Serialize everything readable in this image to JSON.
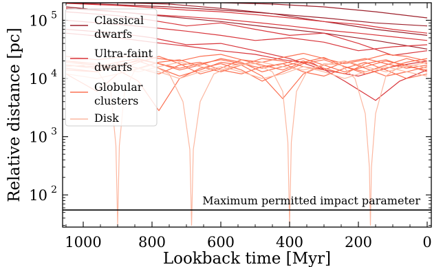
{
  "chart_data": {
    "type": "line",
    "xlabel": "Lookback time [Myr]",
    "ylabel": "Relative distance [pc]",
    "x_reversed": true,
    "y_scale": "log",
    "xlim": [
      1060,
      -12
    ],
    "ylim": [
      28,
      200000
    ],
    "x_ticks": [
      {
        "value": 1000,
        "label": "1000"
      },
      {
        "value": 800,
        "label": "800"
      },
      {
        "value": 600,
        "label": "600"
      },
      {
        "value": 400,
        "label": "400"
      },
      {
        "value": 200,
        "label": "200"
      },
      {
        "value": 0,
        "label": "0"
      }
    ],
    "y_ticks": [
      {
        "value": 100,
        "base": "10",
        "exp": "2"
      },
      {
        "value": 1000,
        "base": "10",
        "exp": "3"
      },
      {
        "value": 10000,
        "base": "10",
        "exp": "4"
      },
      {
        "value": 100000,
        "base": "10",
        "exp": "5"
      }
    ],
    "legend": {
      "position": "top-left",
      "entries": [
        {
          "label_lines": [
            "Classical",
            "dwarfs"
          ],
          "color": "#9c1f2a"
        },
        {
          "label_lines": [
            "Ultra-faint",
            "dwarfs"
          ],
          "color": "#d8343a"
        },
        {
          "label_lines": [
            "Globular",
            "clusters"
          ],
          "color": "#fb7052"
        },
        {
          "label_lines": [
            "Disk"
          ],
          "color": "#fcb7a0"
        }
      ]
    },
    "reference_line": {
      "y": 55,
      "label": "Maximum permitted impact parameter",
      "color": "#000000"
    },
    "series": [
      {
        "group": "Classical dwarfs",
        "color": "#9c1f2a",
        "curves": [
          {
            "times": [
              0,
              150,
              300,
              450,
              600,
              750,
              900,
              1050
            ],
            "values": [
              55000,
              70000,
              95000,
              130000,
              160000,
              190000,
              200000,
              200000
            ]
          },
          {
            "times": [
              0,
              150,
              300,
              450,
              600,
              750,
              900,
              1050
            ],
            "values": [
              32000,
              45000,
              60000,
              75000,
              95000,
              115000,
              140000,
              170000
            ]
          },
          {
            "times": [
              0,
              150,
              300,
              450,
              600,
              750,
              900,
              1050
            ],
            "values": [
              110000,
              140000,
              170000,
              190000,
              200000,
              200000,
              200000,
              200000
            ]
          },
          {
            "times": [
              0,
              150,
              300,
              450,
              600,
              750,
              900,
              1050
            ],
            "values": [
              80000,
              90000,
              110000,
              130000,
              150000,
              170000,
              185000,
              200000
            ]
          }
        ]
      },
      {
        "group": "Ultra-faint dwarfs",
        "color": "#d8343a",
        "curves": [
          {
            "times": [
              0,
              100,
              200,
              300,
              400,
              500,
              600,
              700,
              800,
              900,
              1050
            ],
            "values": [
              30000,
              25000,
              40000,
              60000,
              55000,
              70000,
              90000,
              80000,
              100000,
              120000,
              140000
            ]
          },
          {
            "times": [
              0,
              100,
              200,
              300,
              400,
              500,
              600,
              700,
              800,
              900,
              1050
            ],
            "values": [
              20000,
              16000,
              11000,
              14000,
              22000,
              30000,
              40000,
              38000,
              50000,
              60000,
              70000
            ]
          },
          {
            "times": [
              0,
              100,
              200,
              300,
              400,
              500,
              600,
              700,
              800,
              900,
              1050
            ],
            "values": [
              60000,
              70000,
              85000,
              95000,
              110000,
              125000,
              140000,
              150000,
              165000,
              180000,
              195000
            ]
          },
          {
            "times": [
              0,
              80,
              150,
              240,
              330,
              420,
              500,
              600,
              700,
              800,
              900,
              1050
            ],
            "values": [
              14000,
              9000,
              4200,
              9000,
              18000,
              21000,
              26000,
              30000,
              36000,
              42000,
              50000,
              60000
            ]
          },
          {
            "times": [
              0,
              100,
              200,
              300,
              400,
              500,
              600,
              700,
              800,
              900,
              1050
            ],
            "values": [
              38000,
              35000,
              30000,
              42000,
              50000,
              45000,
              55000,
              65000,
              75000,
              85000,
              100000
            ]
          },
          {
            "times": [
              0,
              100,
              200,
              300,
              400,
              500,
              600,
              700,
              800,
              900,
              1050
            ],
            "values": [
              45000,
              52000,
              60000,
              68000,
              80000,
              92000,
              105000,
              115000,
              125000,
              140000,
              160000
            ]
          }
        ]
      },
      {
        "group": "Globular clusters",
        "color": "#fb7052",
        "curves": [
          {
            "times": [
              0,
              60,
              120,
              180,
              240,
              300,
              360,
              420,
              480,
              540,
              600,
              660,
              720,
              780,
              840,
              900,
              960,
              1050
            ],
            "values": [
              14000,
              16000,
              21000,
              18000,
              12000,
              15000,
              20000,
              16000,
              13000,
              19000,
              22000,
              17000,
              14000,
              18000,
              21000,
              16000,
              15000,
              17000
            ]
          },
          {
            "times": [
              0,
              60,
              120,
              180,
              240,
              300,
              360,
              420,
              480,
              540,
              600,
              660,
              720,
              780,
              840,
              900,
              960,
              1050
            ],
            "values": [
              18000,
              22000,
              17000,
              13000,
              16000,
              23000,
              19000,
              14000,
              17000,
              21000,
              15000,
              12000,
              18000,
              24000,
              19000,
              14000,
              18000,
              20000
            ]
          },
          {
            "times": [
              0,
              60,
              120,
              180,
              240,
              300,
              360,
              420,
              480,
              540,
              600,
              660,
              720,
              780,
              840,
              900,
              960,
              1050
            ],
            "values": [
              12000,
              10000,
              14000,
              19000,
              15000,
              11000,
              13000,
              18000,
              16000,
              12000,
              14000,
              19000,
              17000,
              12000,
              15000,
              18000,
              13000,
              14000
            ]
          },
          {
            "times": [
              0,
              60,
              120,
              180,
              240,
              300,
              360,
              420,
              480,
              540,
              600,
              660,
              720,
              780,
              840,
              900,
              960,
              1050
            ],
            "values": [
              20000,
              24000,
              26000,
              21000,
              18000,
              22000,
              27000,
              23000,
              19000,
              21000,
              26000,
              24000,
              20000,
              22000,
              25000,
              23000,
              21000,
              24000
            ]
          },
          {
            "times": [
              0,
              60,
              120,
              180,
              240,
              300,
              360,
              420,
              480,
              540,
              600,
              660,
              720,
              780,
              840,
              900,
              960,
              1050
            ],
            "values": [
              16000,
              13000,
              11000,
              15000,
              20000,
              17000,
              12000,
              4500,
              11000,
              17000,
              19000,
              14000,
              11000,
              15000,
              20000,
              17000,
              13000,
              15000
            ]
          },
          {
            "times": [
              0,
              60,
              120,
              180,
              240,
              300,
              360,
              420,
              480,
              540,
              600,
              660,
              720,
              780,
              840,
              900,
              960,
              1050
            ],
            "values": [
              22000,
              19000,
              15000,
              12000,
              16000,
              21000,
              18000,
              13000,
              9000,
              14000,
              18000,
              15000,
              10000,
              2800,
              9000,
              14000,
              17000,
              19000
            ]
          },
          {
            "times": [
              0,
              60,
              120,
              180,
              240,
              300,
              360,
              420,
              480,
              540,
              600,
              660,
              720,
              780,
              840,
              900,
              960,
              1050
            ],
            "values": [
              13000,
              17000,
              20000,
              16000,
              13000,
              17000,
              22000,
              18000,
              15000,
              18000,
              21000,
              18000,
              15000,
              18000,
              22000,
              19000,
              16000,
              17000
            ]
          },
          {
            "times": [
              0,
              60,
              120,
              180,
              240,
              300,
              360,
              420,
              480,
              540,
              600,
              660,
              720,
              780,
              840,
              900,
              960,
              1050
            ],
            "values": [
              17000,
              15000,
              18000,
              22000,
              19000,
              14000,
              16000,
              20000,
              22000,
              17000,
              13000,
              16000,
              21000,
              19000,
              15000,
              12000,
              6000,
              12000
            ]
          }
        ]
      },
      {
        "group": "Disk",
        "color": "#fcb7a0",
        "curves": [
          {
            "times": [
              0,
              40,
              80,
              120,
              150,
              162,
              165,
              168,
              180,
              210,
              250,
              300,
              350,
              380,
              395,
              400,
              405,
              420,
              450,
              500,
              560,
              620,
              660,
              680,
              685,
              690,
              710,
              750,
              800,
              850,
              880,
              895,
              900,
              905,
              920,
              960,
              1000,
              1050
            ],
            "values": [
              15000,
              17000,
              16000,
              11000,
              2500,
              300,
              30,
              300,
              2500,
              10000,
              17000,
              18000,
              13000,
              6000,
              800,
              30,
              800,
              6000,
              13000,
              18000,
              17000,
              12000,
              4000,
              600,
              30,
              600,
              4000,
              12000,
              17000,
              14000,
              6000,
              700,
              30,
              700,
              6000,
              14000,
              17000,
              16000
            ]
          },
          {
            "times": [
              0,
              60,
              120,
              180,
              240,
              300,
              360,
              420,
              480,
              540,
              600,
              660,
              720,
              780,
              840,
              900,
              960,
              1050
            ],
            "values": [
              11000,
              13000,
              16000,
              13000,
              10000,
              13000,
              16000,
              12000,
              10000,
              13000,
              16000,
              13000,
              10000,
              13000,
              15000,
              12000,
              10000,
              12000
            ]
          },
          {
            "times": [
              0,
              60,
              120,
              180,
              240,
              300,
              360,
              420,
              480,
              540,
              600,
              660,
              720,
              780,
              840,
              900,
              960,
              1050
            ],
            "values": [
              19000,
              16000,
              13000,
              16000,
              20000,
              17000,
              14000,
              16000,
              19000,
              17000,
              14000,
              16000,
              19000,
              16000,
              13000,
              15000,
              18000,
              19000
            ]
          }
        ]
      }
    ]
  }
}
